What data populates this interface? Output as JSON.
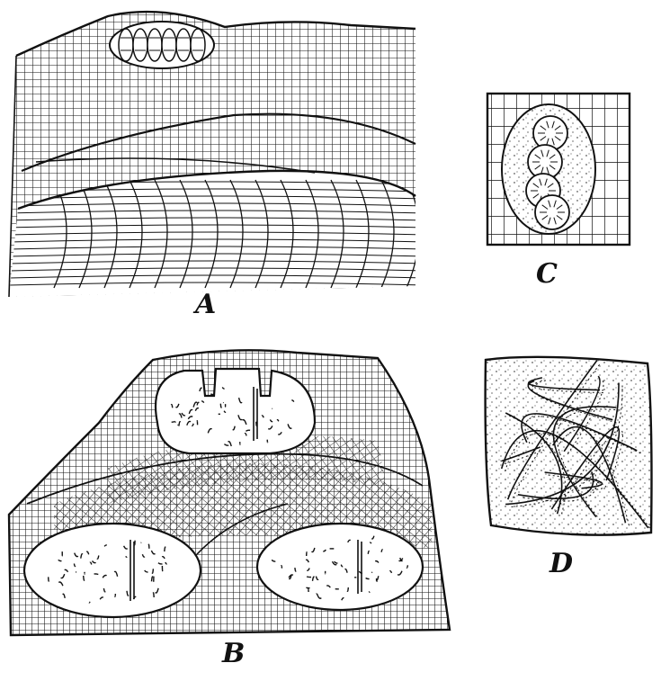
{
  "figure": {
    "panels": [
      {
        "id": "A",
        "label": "A"
      },
      {
        "id": "B",
        "label": "B"
      },
      {
        "id": "C",
        "label": "C"
      },
      {
        "id": "D",
        "label": "D"
      }
    ]
  },
  "colors": {
    "ink": "#111111",
    "paper": "#ffffff"
  }
}
